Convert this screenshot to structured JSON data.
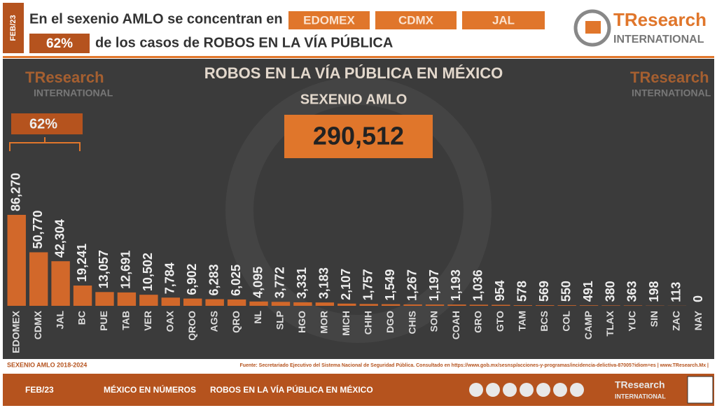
{
  "header": {
    "tag": "FEB/23",
    "line1": "En el sexenio AMLO se concentran en",
    "boxes": [
      "EDOMEX",
      "CDMX",
      "JAL"
    ],
    "share": "62%",
    "line2": "de los casos de ROBOS EN LA VÍA PÚBLICA"
  },
  "logo": {
    "brand": "TResearch",
    "sub": "INTERNATIONAL"
  },
  "chart_data": {
    "type": "bar",
    "title": "ROBOS EN LA VÍA PÚBLICA EN MÉXICO",
    "subtitle": "SEXENIO AMLO",
    "annotations": {
      "total": "290,512",
      "share": "62%"
    },
    "color": "#d2682a",
    "categories": [
      "EDOMEX",
      "CDMX",
      "JAL",
      "BC",
      "PUE",
      "TAB",
      "VER",
      "OAX",
      "QROO",
      "AGS",
      "QRO",
      "NL",
      "SLP",
      "HGO",
      "MOR",
      "MICH",
      "CHIH",
      "DGO",
      "CHIS",
      "SON",
      "COAH",
      "GRO",
      "GTO",
      "TAM",
      "BCS",
      "COL",
      "CAMP",
      "TLAX",
      "YUC",
      "SIN",
      "ZAC",
      "NAY"
    ],
    "values": [
      86270,
      50770,
      42304,
      19241,
      13057,
      12691,
      10502,
      7784,
      6902,
      6283,
      6025,
      4095,
      3772,
      3331,
      3183,
      2107,
      1757,
      1549,
      1267,
      1197,
      1193,
      1036,
      954,
      578,
      569,
      550,
      491,
      380,
      363,
      198,
      113,
      0
    ],
    "value_labels": [
      "86,270",
      "50,770",
      "42,304",
      "19,241",
      "13,057",
      "12,691",
      "10,502",
      "7,784",
      "6,902",
      "6,283",
      "6,025",
      "4,095",
      "3,772",
      "3,331",
      "3,183",
      "2,107",
      "1,757",
      "1,549",
      "1,267",
      "1,197",
      "1,193",
      "1,036",
      "954",
      "578",
      "569",
      "550",
      "491",
      "380",
      "363",
      "198",
      "113",
      "0"
    ]
  },
  "footer": {
    "period": "SEXENIO AMLO 2018-2024",
    "source": "Fuente: Secretariado Ejecutivo del Sistema Nacional de Seguridad Pública. Consultado en https://www.gob.mx/sesnsp/acciones-y-programas/incidencia-delictiva-87005?idiom=es | www.TResearch.Mx |",
    "date": "FEB/23",
    "section": "MÉXICO EN NÚMEROS",
    "topic": "ROBOS EN LA VÍA PÚBLICA EN MÉXICO"
  }
}
